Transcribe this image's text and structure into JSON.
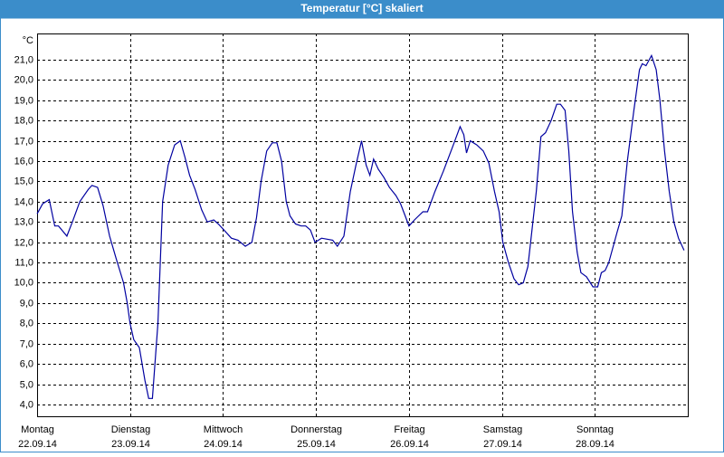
{
  "chart_data": {
    "type": "line",
    "title": "Temperatur [°C] skaliert",
    "y_unit": "°C",
    "x": [
      0,
      0.06,
      0.13,
      0.19,
      0.23,
      0.32,
      0.38,
      0.46,
      0.55,
      0.59,
      0.65,
      0.71,
      0.78,
      0.85,
      0.93,
      0.97,
      1.0,
      1.04,
      1.1,
      1.16,
      1.2,
      1.24,
      1.3,
      1.35,
      1.41,
      1.48,
      1.54,
      1.59,
      1.64,
      1.7,
      1.77,
      1.83,
      1.9,
      1.95,
      2.01,
      2.09,
      2.16,
      2.24,
      2.31,
      2.36,
      2.41,
      2.47,
      2.53,
      2.58,
      2.63,
      2.68,
      2.72,
      2.78,
      2.84,
      2.89,
      2.94,
      2.99,
      3.06,
      3.18,
      3.23,
      3.3,
      3.37,
      3.43,
      3.49,
      3.54,
      3.58,
      3.62,
      3.67,
      3.73,
      3.79,
      3.86,
      3.91,
      3.96,
      4.0,
      4.06,
      4.15,
      4.2,
      4.28,
      4.37,
      4.47,
      4.55,
      4.59,
      4.62,
      4.66,
      4.73,
      4.8,
      4.86,
      4.92,
      4.97,
      5.01,
      5.07,
      5.13,
      5.18,
      5.23,
      5.28,
      5.37,
      5.42,
      5.47,
      5.53,
      5.59,
      5.63,
      5.68,
      5.72,
      5.76,
      5.81,
      5.85,
      5.91,
      5.98,
      6.03,
      6.07,
      6.11,
      6.15,
      6.24,
      6.29,
      6.35,
      6.42,
      6.48,
      6.51,
      6.55,
      6.61,
      6.66,
      6.7,
      6.75,
      6.8,
      6.85,
      6.9,
      6.96
    ],
    "series": [
      {
        "name": "Temperatur",
        "color": "#0000a0",
        "values": [
          13.4,
          13.9,
          14.1,
          12.8,
          12.8,
          12.3,
          13.0,
          14.0,
          14.6,
          14.8,
          14.7,
          13.8,
          12.3,
          11.2,
          10.0,
          9.0,
          8.0,
          7.2,
          6.8,
          5.2,
          4.3,
          4.3,
          8.0,
          14.0,
          15.8,
          16.8,
          17.0,
          16.2,
          15.3,
          14.6,
          13.6,
          13.0,
          13.1,
          12.9,
          12.6,
          12.2,
          12.1,
          11.8,
          12.0,
          13.2,
          15.0,
          16.5,
          16.9,
          16.9,
          16.0,
          14.0,
          13.3,
          12.9,
          12.8,
          12.8,
          12.6,
          12.0,
          12.2,
          12.1,
          11.8,
          12.3,
          14.5,
          15.8,
          17.0,
          15.8,
          15.3,
          16.1,
          15.6,
          15.2,
          14.7,
          14.3,
          13.9,
          13.3,
          12.8,
          13.1,
          13.5,
          13.5,
          14.5,
          15.5,
          16.7,
          17.7,
          17.3,
          16.4,
          17.0,
          16.8,
          16.5,
          15.9,
          14.5,
          13.5,
          12.0,
          11.0,
          10.2,
          9.9,
          10.0,
          10.8,
          14.5,
          17.2,
          17.4,
          18.0,
          18.8,
          18.8,
          18.5,
          16.5,
          13.5,
          11.5,
          10.5,
          10.3,
          9.8,
          9.8,
          10.5,
          10.6,
          11.0,
          12.5,
          13.3,
          16.0,
          18.5,
          20.5,
          20.8,
          20.7,
          21.2,
          20.5,
          19.0,
          16.5,
          14.5,
          13.0,
          12.2,
          11.6
        ]
      }
    ],
    "xlim": [
      0,
      7
    ],
    "xticks": [
      {
        "value": 0,
        "label": "Montag",
        "date": "22.09.14"
      },
      {
        "value": 1,
        "label": "Dienstag",
        "date": "23.09.14"
      },
      {
        "value": 2,
        "label": "Mittwoch",
        "date": "24.09.14"
      },
      {
        "value": 3,
        "label": "Donnerstag",
        "date": "25.09.14"
      },
      {
        "value": 4,
        "label": "Freitag",
        "date": "26.09.14"
      },
      {
        "value": 5,
        "label": "Samstag",
        "date": "27.09.14"
      },
      {
        "value": 6,
        "label": "Sonntag",
        "date": "28.09.14"
      }
    ],
    "ylim": [
      3.42,
      22.29
    ],
    "yticks": [
      {
        "value": 4,
        "label": "4,0"
      },
      {
        "value": 5,
        "label": "5,0"
      },
      {
        "value": 6,
        "label": "6,0"
      },
      {
        "value": 7,
        "label": "7,0"
      },
      {
        "value": 8,
        "label": "8,0"
      },
      {
        "value": 9,
        "label": "9,0"
      },
      {
        "value": 10,
        "label": "10,0"
      },
      {
        "value": 11,
        "label": "11,0"
      },
      {
        "value": 12,
        "label": "12,0"
      },
      {
        "value": 13,
        "label": "13,0"
      },
      {
        "value": 14,
        "label": "14,0"
      },
      {
        "value": 15,
        "label": "15,0"
      },
      {
        "value": 16,
        "label": "16,0"
      },
      {
        "value": 17,
        "label": "17,0"
      },
      {
        "value": 18,
        "label": "18,0"
      },
      {
        "value": 19,
        "label": "19,0"
      },
      {
        "value": 20,
        "label": "20,0"
      },
      {
        "value": 21,
        "label": "21,0"
      }
    ],
    "grid": true
  }
}
